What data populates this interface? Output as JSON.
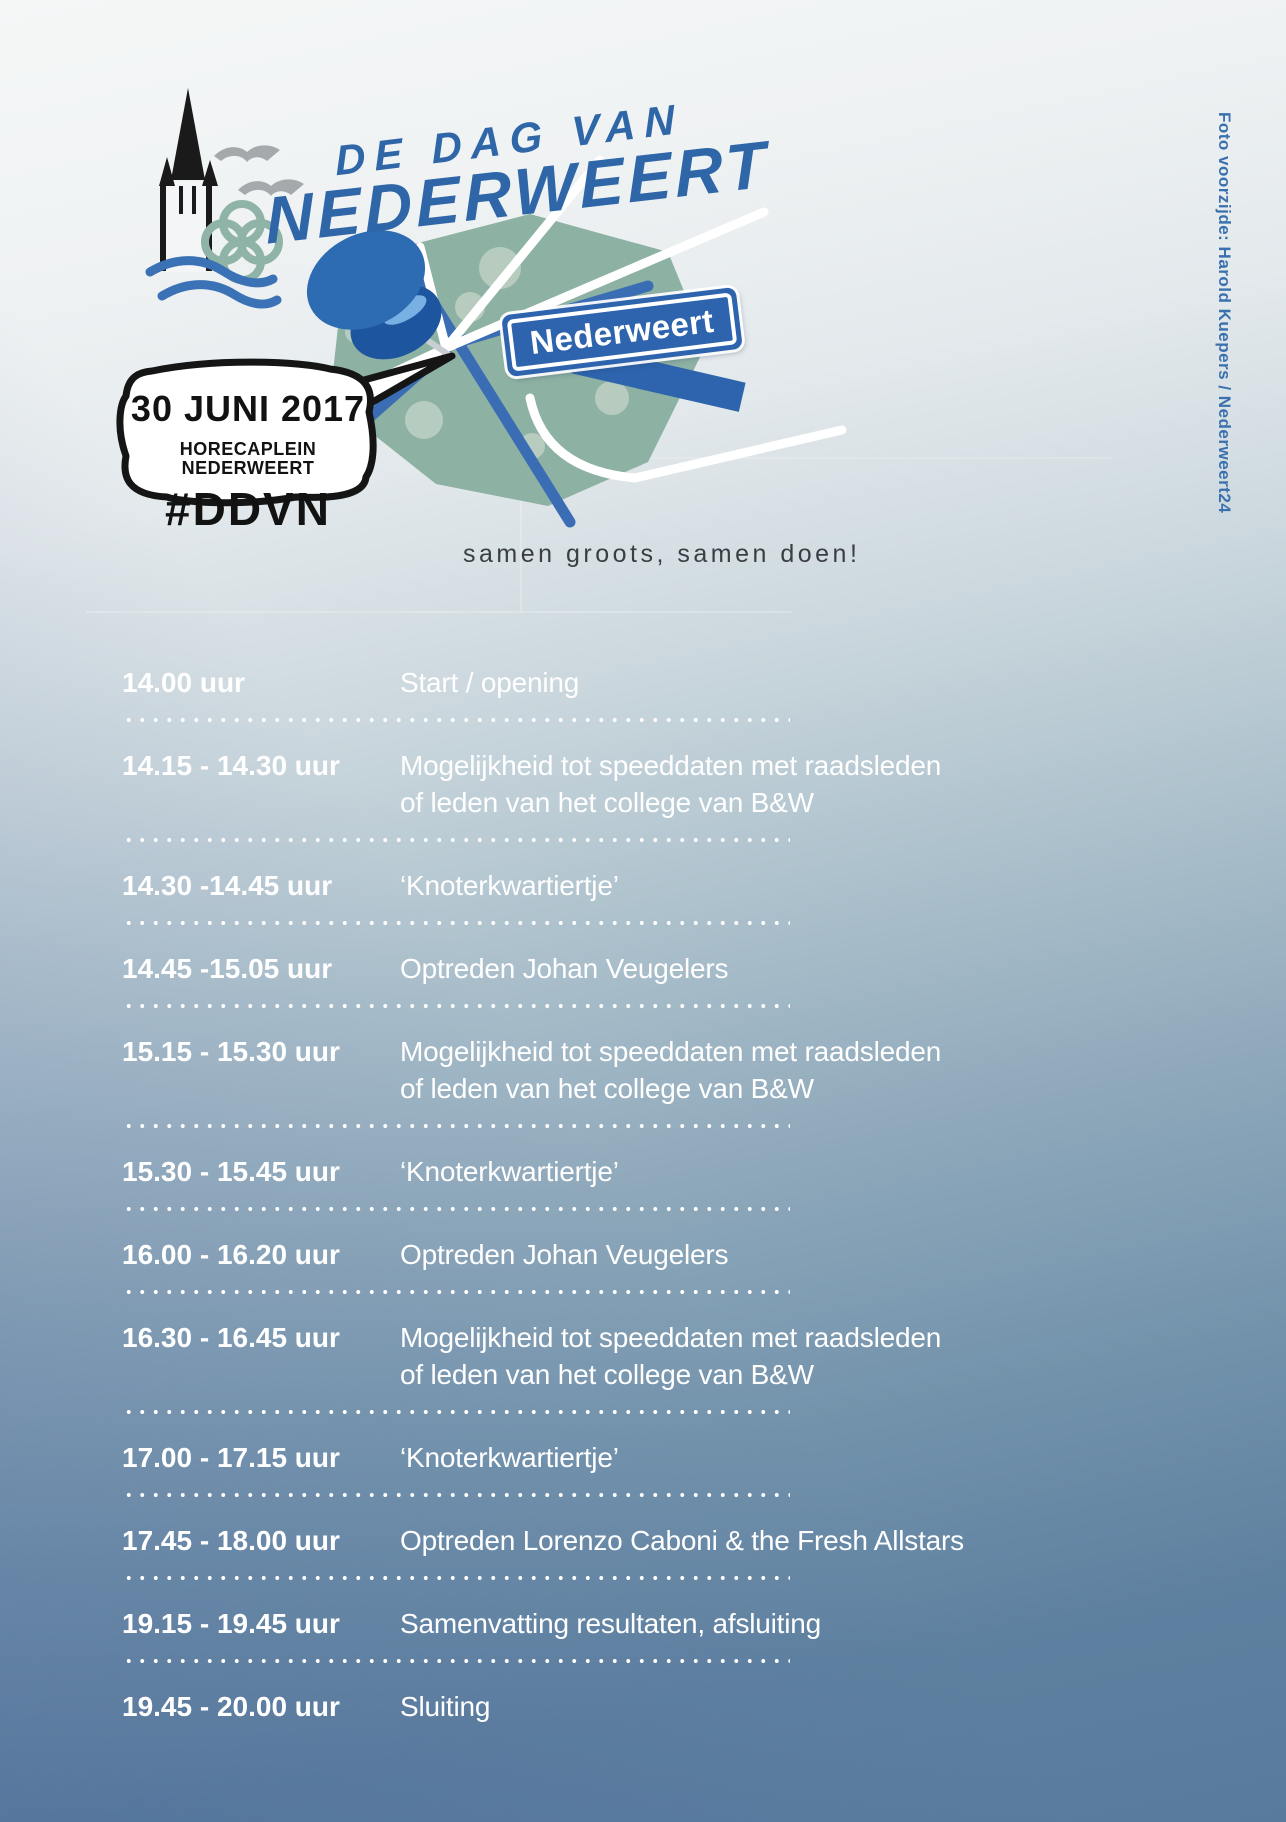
{
  "header": {
    "title_line1": "DE DAG VAN",
    "title_line2": "NEDERWEERT",
    "tagline": "samen groots, samen doen!"
  },
  "bubble": {
    "date": "30 JUNI 2017",
    "location": "HORECAPLEIN NEDERWEERT",
    "hashtag": "#DDVN"
  },
  "map": {
    "sign_label": "Nederweert"
  },
  "credit": {
    "text": "Foto voorzijde: Harold Kuepers / Nederweert24"
  },
  "schedule": {
    "rows": [
      {
        "time": "14.00 uur",
        "description": "Start / opening"
      },
      {
        "time": "14.15 - 14.30 uur",
        "description": "Mogelijkheid tot speeddaten met raadsleden\nof leden van het college van B&W"
      },
      {
        "time": "14.30 -14.45 uur",
        "description": "‘Knoterkwartiertje’"
      },
      {
        "time": "14.45 -15.05 uur",
        "description": "Optreden Johan Veugelers"
      },
      {
        "time": "15.15 - 15.30 uur",
        "description": "Mogelijkheid tot speeddaten met raadsleden\nof leden van het college van B&W"
      },
      {
        "time": "15.30 - 15.45 uur",
        "description": "‘Knoterkwartiertje’"
      },
      {
        "time": "16.00 - 16.20 uur",
        "description": "Optreden Johan Veugelers"
      },
      {
        "time": "16.30 - 16.45 uur",
        "description": "Mogelijkheid tot speeddaten met raadsleden\nof leden van het college van B&W"
      },
      {
        "time": "17.00 - 17.15 uur",
        "description": "‘Knoterkwartiertje’"
      },
      {
        "time": "17.45 - 18.00 uur",
        "description": "Optreden Lorenzo Caboni & the Fresh Allstars"
      },
      {
        "time": "19.15 - 19.45 uur",
        "description": "Samenvatting resultaten, afsluiting"
      },
      {
        "time": "19.45 - 20.00 uur",
        "description": "Sluiting"
      }
    ]
  },
  "icons": [
    "church-tower-icon",
    "birds-icon",
    "clover-icon",
    "waves-icon",
    "map-illustration",
    "pushpin-icon",
    "street-sign",
    "speech-bubble"
  ],
  "colors": {
    "accent_blue": "#2f66a8",
    "sign_blue": "#2e64ad",
    "road_blue": "#3a6db3",
    "map_green": "#8db1a3",
    "credit_blue": "#3a70ad",
    "schedule_text": "#ffffff",
    "bubble_text": "#121212",
    "background_top": "#f3f5f6",
    "background_bottom_left": "#5276a4",
    "background_bottom_right": "#5e8094"
  }
}
